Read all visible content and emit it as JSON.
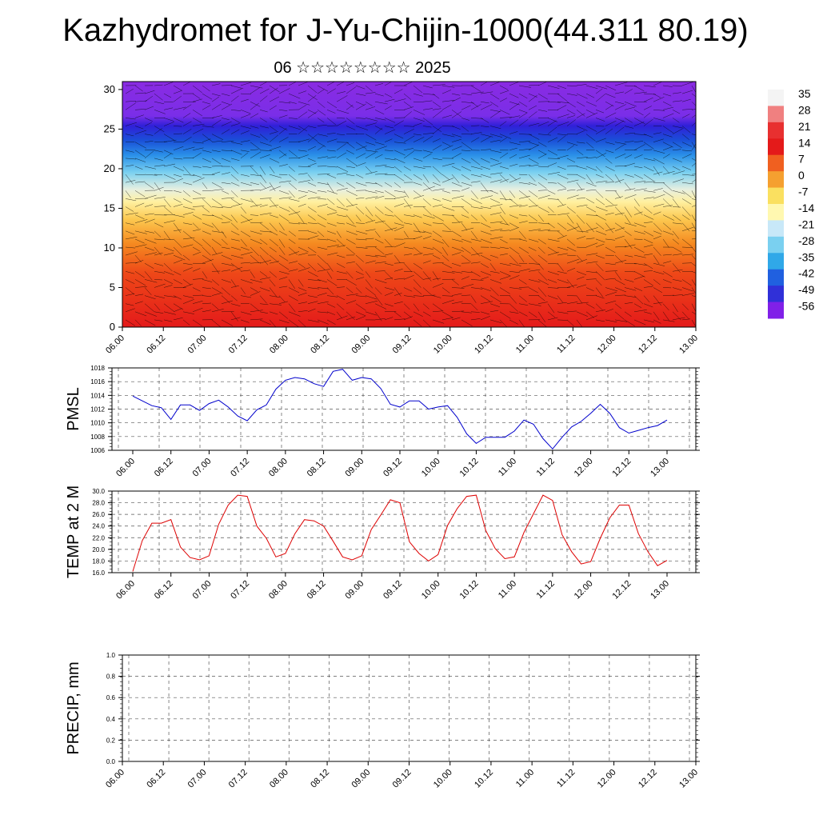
{
  "title": "Kazhydromet for J-Yu-Chijin-1000(44.311 80.19)",
  "subtitle": "06 ☆☆☆☆☆☆☆☆ 2025",
  "chart_data": [
    {
      "type": "heatmap",
      "y_ticks": [
        "0",
        "5",
        "10",
        "15",
        "20",
        "25",
        "30"
      ],
      "ylim": [
        0,
        31
      ],
      "x_ticks": [
        "06.00",
        "06.12",
        "07.00",
        "07.12",
        "08.00",
        "08.12",
        "09.00",
        "09.12",
        "10.00",
        "10.12",
        "11.00",
        "11.12",
        "12.00",
        "12.12",
        "13.00"
      ],
      "colorbar": {
        "labels": [
          "35",
          "28",
          "21",
          "14",
          "7",
          "0",
          "-7",
          "-14",
          "-21",
          "-28",
          "-35",
          "-42",
          "-49",
          "-56"
        ],
        "colors": [
          "#f4f4f4",
          "#f08080",
          "#e83030",
          "#e41a1a",
          "#f06020",
          "#f5a030",
          "#fae060",
          "#fff8b0",
          "#c8e8f8",
          "#7ad0f0",
          "#30a8e8",
          "#2060e0",
          "#3030d8",
          "#8020e8"
        ]
      },
      "overlay": "wind barbs"
    },
    {
      "type": "line",
      "ylabel": "PMSL",
      "ylim": [
        1006,
        1018
      ],
      "y_ticks": [
        "1006",
        "1008",
        "1010",
        "1012",
        "1014",
        "1016",
        "1018"
      ],
      "x_ticks": [
        "06.00",
        "06.12",
        "07.00",
        "07.12",
        "08.00",
        "08.12",
        "09.00",
        "09.12",
        "10.00",
        "10.12",
        "11.00",
        "11.12",
        "12.00",
        "12.12",
        "13.00"
      ],
      "series": [
        {
          "color": "#0000cc",
          "values": [
            1013.9,
            1013.2,
            1012.5,
            1012.2,
            1010.5,
            1012.6,
            1012.6,
            1011.8,
            1012.8,
            1013.3,
            1012.3,
            1011.0,
            1010.3,
            1011.9,
            1012.6,
            1014.9,
            1016.2,
            1016.6,
            1016.4,
            1015.7,
            1015.3,
            1017.5,
            1017.8,
            1016.2,
            1016.6,
            1016.4,
            1015.0,
            1012.7,
            1012.3,
            1013.2,
            1013.2,
            1012.0,
            1012.3,
            1012.5,
            1010.8,
            1008.4,
            1007.0,
            1007.9,
            1007.9,
            1007.9,
            1008.8,
            1010.4,
            1009.8,
            1007.7,
            1006.2,
            1007.9,
            1009.4,
            1010.2,
            1011.4,
            1012.7,
            1011.4,
            1009.3,
            1008.5,
            1008.9,
            1009.3,
            1009.6,
            1010.4
          ]
        }
      ]
    },
    {
      "type": "line",
      "ylabel": "TEMP at 2 M",
      "ylim": [
        16,
        30
      ],
      "y_ticks": [
        "16.0",
        "18.0",
        "20.0",
        "22.0",
        "24.0",
        "26.0",
        "28.0",
        "30.0"
      ],
      "x_ticks": [
        "06.00",
        "06.12",
        "07.00",
        "07.12",
        "08.00",
        "08.12",
        "09.00",
        "09.12",
        "10.00",
        "10.12",
        "11.00",
        "11.12",
        "12.00",
        "12.12",
        "13.00"
      ],
      "series": [
        {
          "color": "#dd0000",
          "values": [
            16.2,
            21.5,
            24.5,
            24.5,
            25.1,
            20.4,
            18.6,
            18.2,
            18.9,
            24.3,
            27.6,
            29.3,
            29.1,
            24.0,
            21.9,
            18.7,
            19.3,
            22.7,
            25.1,
            24.9,
            24.0,
            21.4,
            18.7,
            18.2,
            18.9,
            23.4,
            25.9,
            28.5,
            28.0,
            21.3,
            19.3,
            18.0,
            19.1,
            24.1,
            27.0,
            29.1,
            29.3,
            23.2,
            20.1,
            18.4,
            18.7,
            22.9,
            26.1,
            29.3,
            28.4,
            22.5,
            19.6,
            17.5,
            17.9,
            21.9,
            25.4,
            27.6,
            27.6,
            22.7,
            19.6,
            17.2,
            18.1
          ]
        }
      ]
    },
    {
      "type": "line",
      "ylabel": "PRECIP, mm",
      "ylim": [
        0,
        1
      ],
      "y_ticks": [
        "0.0",
        "0.2",
        "0.4",
        "0.6",
        "0.8",
        "1.0"
      ],
      "x_ticks": [
        "06.00",
        "06.12",
        "07.00",
        "07.12",
        "08.00",
        "08.12",
        "09.00",
        "09.12",
        "10.00",
        "10.12",
        "11.00",
        "11.12",
        "12.00",
        "12.12",
        "13.00"
      ],
      "series": [
        {
          "color": "#006000",
          "values": [
            0,
            0,
            0,
            0,
            0,
            0,
            0,
            0,
            0,
            0,
            0,
            0,
            0,
            0,
            0
          ]
        }
      ]
    }
  ]
}
